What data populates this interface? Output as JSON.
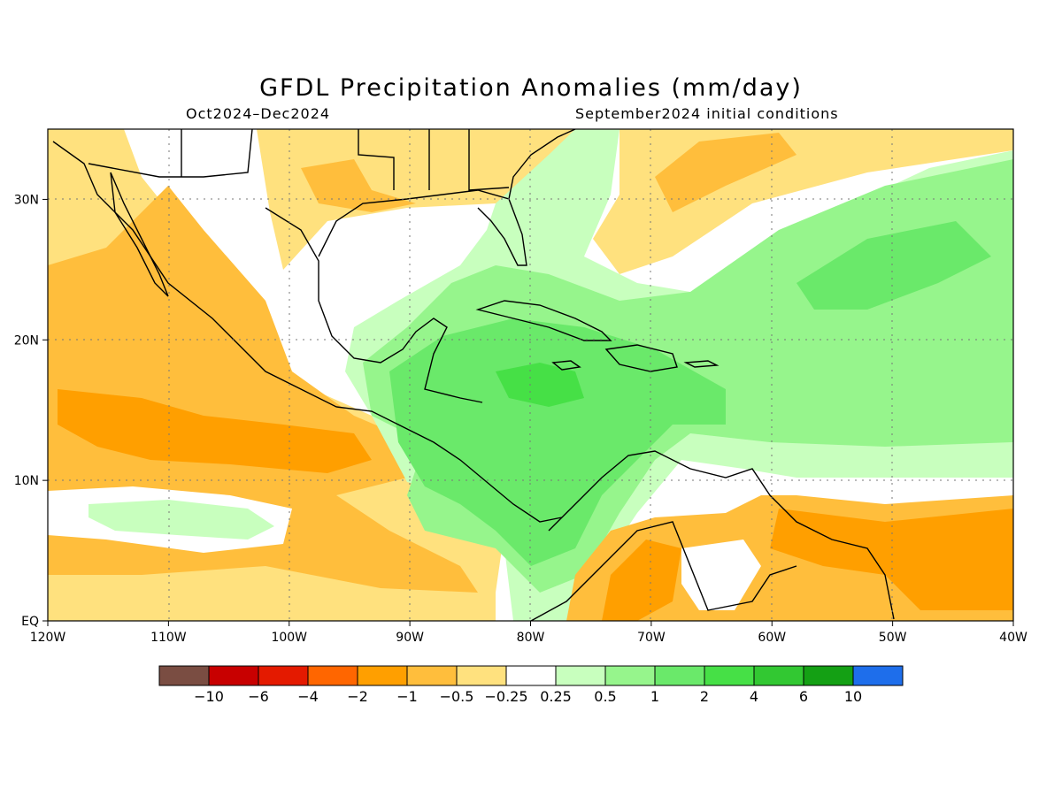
{
  "header": {
    "title": "GFDL Precipitation Anomalies (mm/day)",
    "period": "Oct2024–Dec2024",
    "init": "September2024 initial conditions"
  },
  "map": {
    "region": {
      "lon_min": -120,
      "lon_max": -40,
      "lat_min": 0,
      "lat_max": 35
    },
    "lat_ticks": [
      {
        "label": "EQ",
        "lat": 0
      },
      {
        "label": "10N",
        "lat": 10
      },
      {
        "label": "20N",
        "lat": 20
      },
      {
        "label": "30N",
        "lat": 30
      }
    ],
    "lon_ticks": [
      {
        "label": "120W",
        "lon": -120
      },
      {
        "label": "110W",
        "lon": -110
      },
      {
        "label": "100W",
        "lon": -100
      },
      {
        "label": "90W",
        "lon": -90
      },
      {
        "label": "80W",
        "lon": -80
      },
      {
        "label": "70W",
        "lon": -70
      },
      {
        "label": "60W",
        "lon": -60
      },
      {
        "label": "50W",
        "lon": -50
      },
      {
        "label": "40W",
        "lon": -40
      }
    ],
    "gridlines": true
  },
  "colorbar": {
    "colors": [
      "#7a4d42",
      "#c80000",
      "#e41a00",
      "#ff6600",
      "#ff9f00",
      "#ffbe3c",
      "#ffe17e",
      "#ffffff",
      "#c8ffbe",
      "#96f58c",
      "#6ae96a",
      "#46e046",
      "#32c832",
      "#14a014",
      "#1e6eeb"
    ],
    "labels": [
      "−10",
      "−6",
      "−4",
      "−2",
      "−1",
      "−0.5",
      "−0.25",
      "0.25",
      "0.5",
      "1",
      "2",
      "4",
      "6",
      "10"
    ]
  }
}
